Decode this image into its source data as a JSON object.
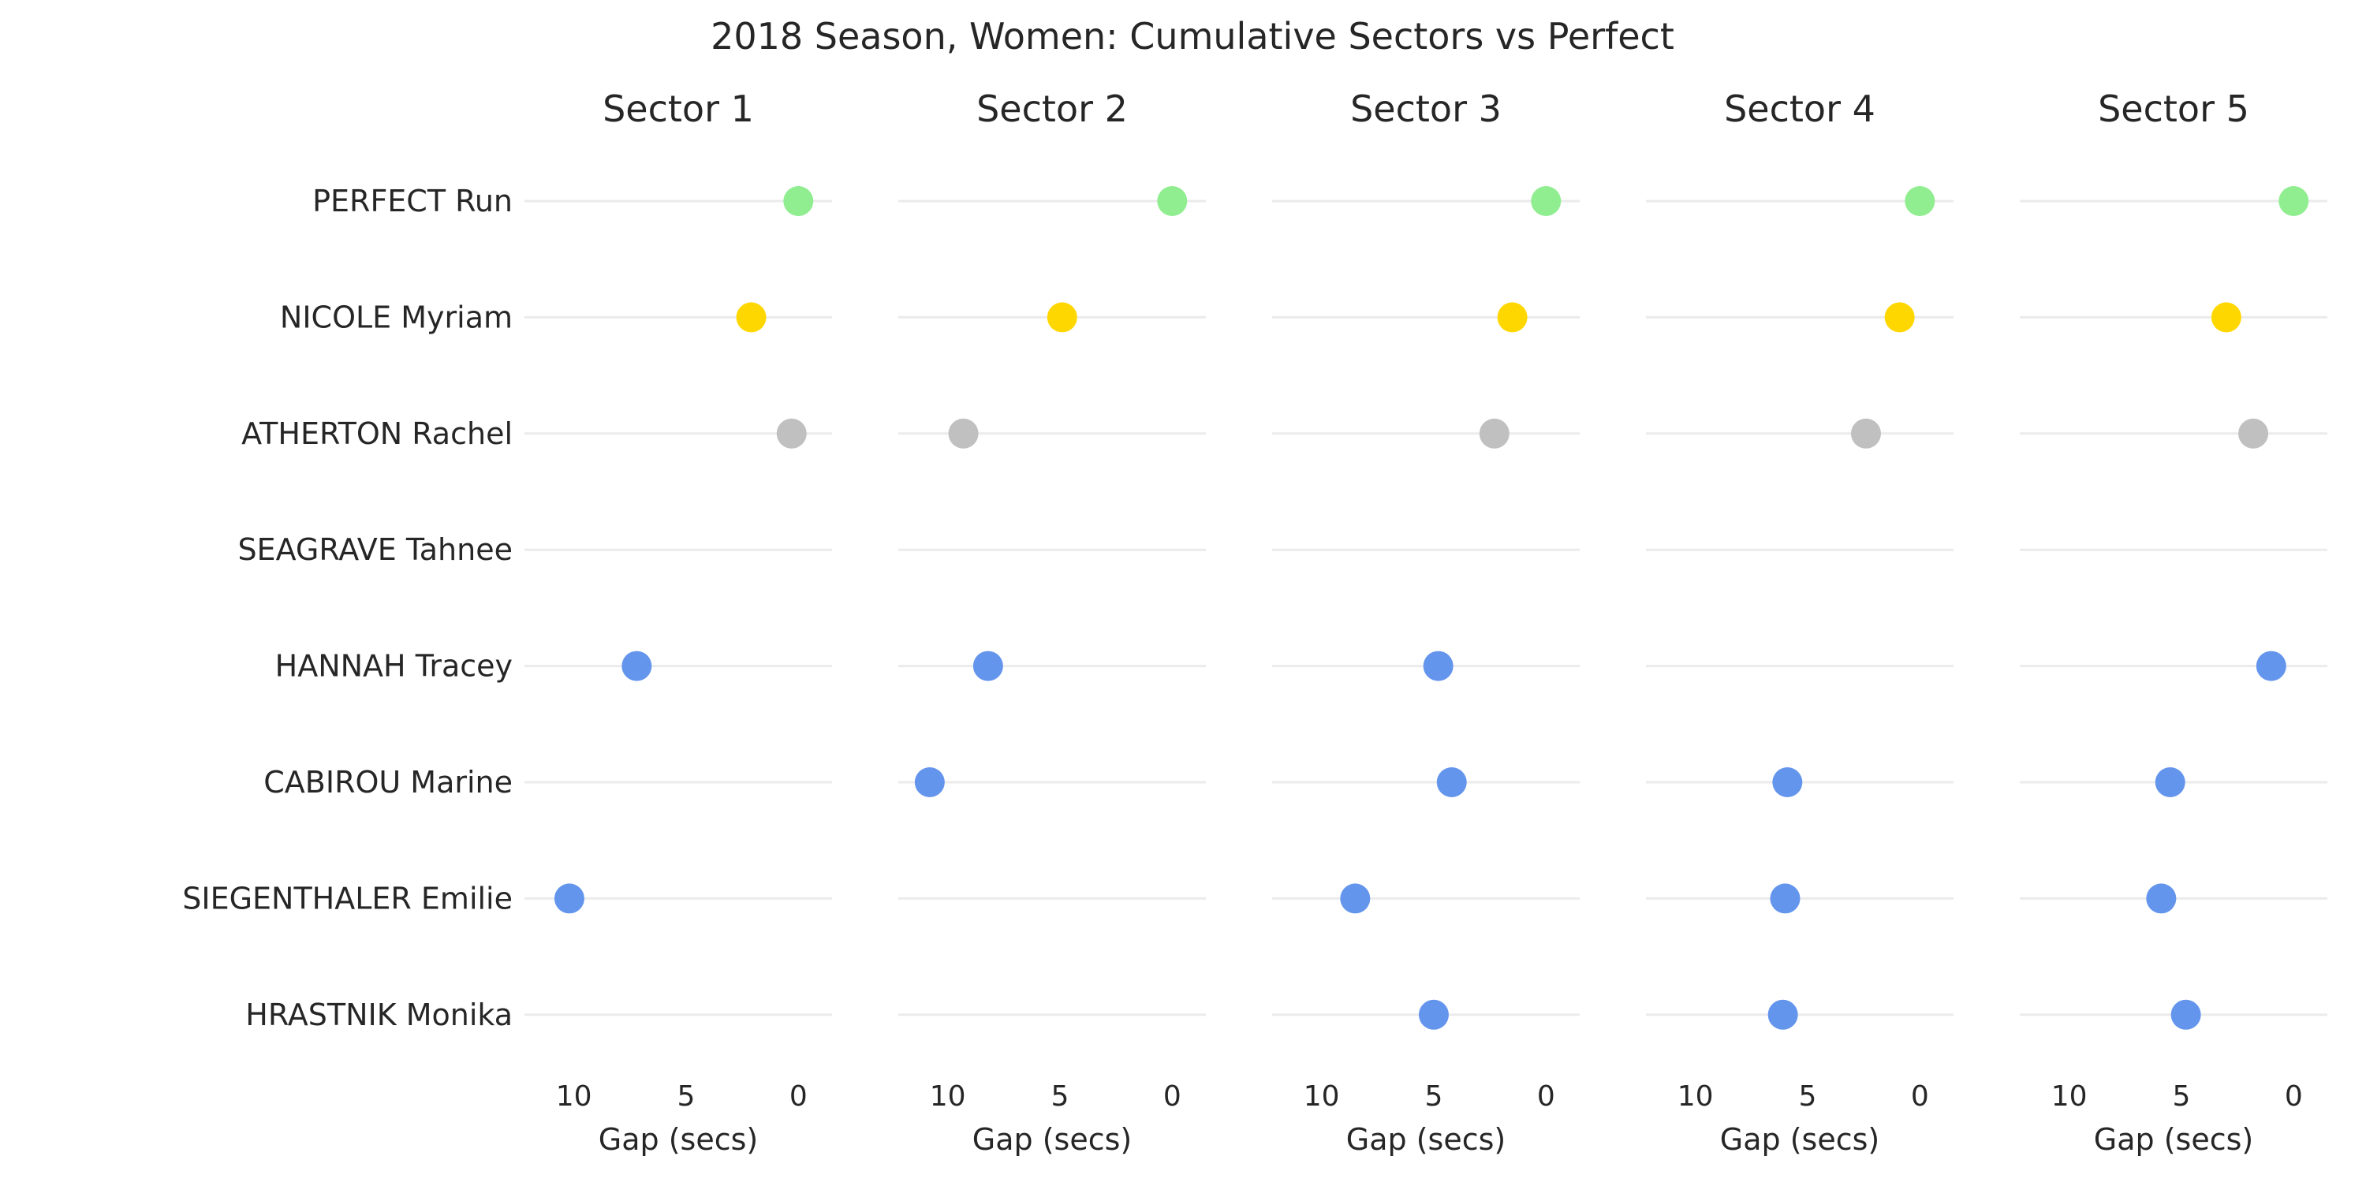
{
  "chart_data": {
    "type": "scatter",
    "title": "2018 Season, Women: Cumulative Sectors vs Perfect",
    "xlabel": "Gap (secs)",
    "xlim": [
      12.2,
      -1.5
    ],
    "xticks": [
      10,
      5,
      0
    ],
    "grid": true,
    "riders": [
      "PERFECT Run",
      "NICOLE Myriam",
      "ATHERTON Rachel",
      "SEAGRAVE Tahnee",
      "HANNAH Tracey",
      "CABIROU Marine",
      "SIEGENTHALER Emilie",
      "HRASTNIK Monika"
    ],
    "rider_colors": [
      "#90ee90",
      "#ffd700",
      "#c0c0c0",
      "#6495ed",
      "#6495ed",
      "#6495ed",
      "#6495ed",
      "#6495ed"
    ],
    "panels": [
      {
        "title": "Sector 1",
        "gaps": [
          0,
          2.1,
          0.3,
          null,
          7.2,
          null,
          10.2,
          null
        ]
      },
      {
        "title": "Sector 2",
        "gaps": [
          0,
          4.9,
          9.3,
          null,
          8.2,
          10.8,
          null,
          null
        ]
      },
      {
        "title": "Sector 3",
        "gaps": [
          0,
          1.5,
          2.3,
          null,
          4.8,
          4.2,
          8.5,
          5.0
        ]
      },
      {
        "title": "Sector 4",
        "gaps": [
          0,
          0.9,
          2.4,
          null,
          null,
          5.9,
          6.0,
          6.1
        ]
      },
      {
        "title": "Sector 5",
        "gaps": [
          0,
          3.0,
          1.8,
          null,
          1.0,
          5.5,
          5.9,
          4.8
        ]
      }
    ]
  }
}
